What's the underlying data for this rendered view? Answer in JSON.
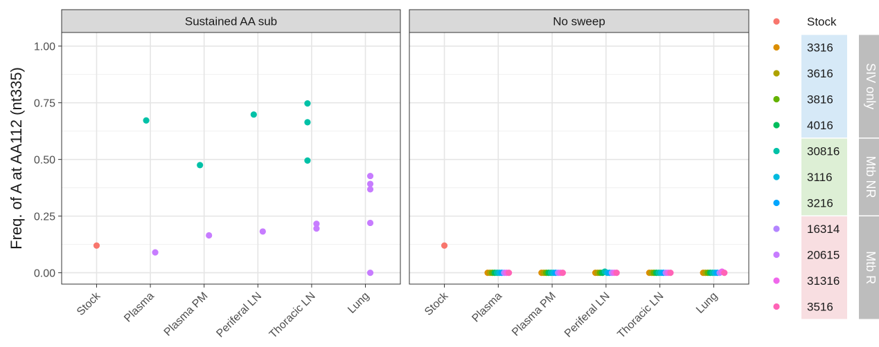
{
  "chart_data": {
    "type": "scatter",
    "ylabel": "Freq. of A at AA112 (nt335)",
    "categories": [
      "Stock",
      "Plasma",
      "Plasma PM",
      "Periferal LN",
      "Thoracic LN",
      "Lung"
    ],
    "ylim": [
      -0.05,
      1.06
    ],
    "yticks": [
      0.0,
      0.25,
      0.5,
      0.75,
      1.0
    ],
    "ytick_labels": [
      "0.00",
      "0.25",
      "0.50",
      "0.75",
      "1.00"
    ],
    "grid": true,
    "legend_position": "right",
    "legend": [
      {
        "name": "Stock",
        "color": "#F8766D"
      },
      {
        "name": "3316",
        "color": "#DB8E00"
      },
      {
        "name": "3616",
        "color": "#AEA200"
      },
      {
        "name": "3816",
        "color": "#64B200"
      },
      {
        "name": "4016",
        "color": "#00BD5C"
      },
      {
        "name": "30816",
        "color": "#00C1A7"
      },
      {
        "name": "3116",
        "color": "#00BADE"
      },
      {
        "name": "3216",
        "color": "#00A6FF"
      },
      {
        "name": "16314",
        "color": "#B385FF"
      },
      {
        "name": "20615",
        "color": "#C77CFF"
      },
      {
        "name": "31316",
        "color": "#EF67EB"
      },
      {
        "name": "3516",
        "color": "#FF63B6"
      }
    ],
    "legend_groups": [
      {
        "label": "SIV only",
        "members": [
          "3316",
          "3616",
          "3816",
          "4016"
        ],
        "fill": "#D6E9F7"
      },
      {
        "label": "Mtb NR",
        "members": [
          "30816",
          "3116",
          "3216"
        ],
        "fill": "#DDEFD5"
      },
      {
        "label": "Mtb R",
        "members": [
          "16314",
          "20615",
          "31316",
          "3516"
        ],
        "fill": "#F8DEE1"
      }
    ],
    "panels": [
      {
        "title": "Sustained AA sub",
        "points": [
          {
            "x": "Stock",
            "y": 0.12,
            "series": "Stock"
          },
          {
            "x": "Plasma",
            "y": 0.672,
            "series": "30816"
          },
          {
            "x": "Plasma",
            "y": 0.09,
            "series": "20615"
          },
          {
            "x": "Plasma PM",
            "y": 0.475,
            "series": "30816"
          },
          {
            "x": "Plasma PM",
            "y": 0.165,
            "series": "20615"
          },
          {
            "x": "Periferal LN",
            "y": 0.698,
            "series": "30816"
          },
          {
            "x": "Periferal LN",
            "y": 0.182,
            "series": "20615"
          },
          {
            "x": "Thoracic LN",
            "y": 0.747,
            "series": "30816"
          },
          {
            "x": "Thoracic LN",
            "y": 0.664,
            "series": "30816"
          },
          {
            "x": "Thoracic LN",
            "y": 0.495,
            "series": "30816"
          },
          {
            "x": "Thoracic LN",
            "y": 0.216,
            "series": "20615"
          },
          {
            "x": "Thoracic LN",
            "y": 0.195,
            "series": "20615"
          },
          {
            "x": "Lung",
            "y": 0.427,
            "series": "20615"
          },
          {
            "x": "Lung",
            "y": 0.392,
            "series": "20615"
          },
          {
            "x": "Lung",
            "y": 0.368,
            "series": "20615"
          },
          {
            "x": "Lung",
            "y": 0.22,
            "series": "20615"
          },
          {
            "x": "Lung",
            "y": 0.0,
            "series": "20615"
          }
        ]
      },
      {
        "title": "No sweep",
        "points": [
          {
            "x": "Stock",
            "y": 0.12,
            "series": "Stock"
          },
          {
            "x": "Plasma",
            "y": 0.0,
            "series": "3316"
          },
          {
            "x": "Plasma",
            "y": 0.0,
            "series": "3616"
          },
          {
            "x": "Plasma",
            "y": 0.0,
            "series": "3816"
          },
          {
            "x": "Plasma",
            "y": 0.0,
            "series": "4016"
          },
          {
            "x": "Plasma",
            "y": 0.0,
            "series": "30816"
          },
          {
            "x": "Plasma",
            "y": 0.0,
            "series": "3116"
          },
          {
            "x": "Plasma",
            "y": 0.0,
            "series": "3216"
          },
          {
            "x": "Plasma",
            "y": 0.0,
            "series": "16314"
          },
          {
            "x": "Plasma",
            "y": 0.0,
            "series": "31316"
          },
          {
            "x": "Plasma",
            "y": 0.0,
            "series": "3516"
          },
          {
            "x": "Plasma PM",
            "y": 0.0,
            "series": "3316"
          },
          {
            "x": "Plasma PM",
            "y": 0.0,
            "series": "3616"
          },
          {
            "x": "Plasma PM",
            "y": 0.0,
            "series": "3816"
          },
          {
            "x": "Plasma PM",
            "y": 0.0,
            "series": "4016"
          },
          {
            "x": "Plasma PM",
            "y": 0.0,
            "series": "30816"
          },
          {
            "x": "Plasma PM",
            "y": 0.0,
            "series": "3116"
          },
          {
            "x": "Plasma PM",
            "y": 0.0,
            "series": "3216"
          },
          {
            "x": "Plasma PM",
            "y": 0.0,
            "series": "16314"
          },
          {
            "x": "Plasma PM",
            "y": 0.0,
            "series": "31316"
          },
          {
            "x": "Plasma PM",
            "y": 0.0,
            "series": "3516"
          },
          {
            "x": "Periferal LN",
            "y": 0.0,
            "series": "3316"
          },
          {
            "x": "Periferal LN",
            "y": 0.0,
            "series": "3616"
          },
          {
            "x": "Periferal LN",
            "y": 0.0,
            "series": "3816"
          },
          {
            "x": "Periferal LN",
            "y": 0.0,
            "series": "4016"
          },
          {
            "x": "Periferal LN",
            "y": 0.005,
            "series": "30816"
          },
          {
            "x": "Periferal LN",
            "y": 0.0,
            "series": "3116"
          },
          {
            "x": "Periferal LN",
            "y": 0.0,
            "series": "3216"
          },
          {
            "x": "Periferal LN",
            "y": 0.0,
            "series": "16314"
          },
          {
            "x": "Periferal LN",
            "y": 0.0,
            "series": "31316"
          },
          {
            "x": "Periferal LN",
            "y": 0.0,
            "series": "3516"
          },
          {
            "x": "Thoracic LN",
            "y": 0.0,
            "series": "3316"
          },
          {
            "x": "Thoracic LN",
            "y": 0.0,
            "series": "3616"
          },
          {
            "x": "Thoracic LN",
            "y": 0.0,
            "series": "3816"
          },
          {
            "x": "Thoracic LN",
            "y": 0.0,
            "series": "4016"
          },
          {
            "x": "Thoracic LN",
            "y": 0.0,
            "series": "30816"
          },
          {
            "x": "Thoracic LN",
            "y": 0.0,
            "series": "3116"
          },
          {
            "x": "Thoracic LN",
            "y": 0.0,
            "series": "3216"
          },
          {
            "x": "Thoracic LN",
            "y": 0.0,
            "series": "16314"
          },
          {
            "x": "Thoracic LN",
            "y": 0.0,
            "series": "31316"
          },
          {
            "x": "Thoracic LN",
            "y": 0.0,
            "series": "3516"
          },
          {
            "x": "Lung",
            "y": 0.0,
            "series": "3316"
          },
          {
            "x": "Lung",
            "y": 0.0,
            "series": "3616"
          },
          {
            "x": "Lung",
            "y": 0.0,
            "series": "3816"
          },
          {
            "x": "Lung",
            "y": 0.0,
            "series": "4016"
          },
          {
            "x": "Lung",
            "y": 0.0,
            "series": "30816"
          },
          {
            "x": "Lung",
            "y": 0.0,
            "series": "3116"
          },
          {
            "x": "Lung",
            "y": 0.0,
            "series": "3216"
          },
          {
            "x": "Lung",
            "y": 0.0,
            "series": "16314"
          },
          {
            "x": "Lung",
            "y": 0.005,
            "series": "31316"
          },
          {
            "x": "Lung",
            "y": 0.0,
            "series": "3516"
          }
        ]
      }
    ]
  }
}
